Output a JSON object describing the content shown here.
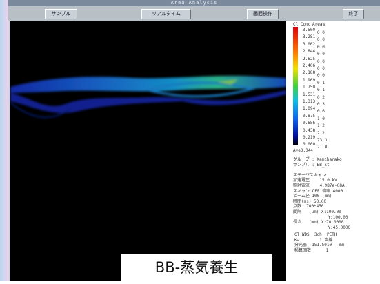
{
  "window": {
    "title": "Area Analysis",
    "buttons": [
      "サンプル",
      "リアルタイム",
      "画面操作",
      "終了"
    ]
  },
  "scale": {
    "headers": [
      "Cl Conc",
      "Area%"
    ],
    "rows": [
      [
        "3.500",
        "0.0"
      ],
      [
        "3.281",
        "0.0"
      ],
      [
        "3.062",
        "0.0"
      ],
      [
        "2.844",
        "0.0"
      ],
      [
        "2.625",
        "0.0"
      ],
      [
        "2.406",
        "0.0"
      ],
      [
        "2.188",
        "0.0"
      ],
      [
        "1.969",
        "0.1"
      ],
      [
        "1.750",
        "0.1"
      ],
      [
        "1.531",
        "0.2"
      ],
      [
        "1.313",
        "0.3"
      ],
      [
        "1.094",
        "0.6"
      ],
      [
        "0.875",
        "1.0"
      ],
      [
        "0.656",
        "1.2"
      ],
      [
        "0.438",
        "2.2"
      ],
      [
        "0.219",
        "73.3"
      ],
      [
        "0.000",
        "21.0"
      ]
    ],
    "average": "Ave0.044"
  },
  "info": {
    "lines": [
      "グループ : Kamiharako",
      "サンプル : BB_st",
      "",
      "ステージスキャン",
      "加速電圧    15.0 kV",
      "照射電流    4.987e-08A",
      "スキャン OFF 倍率 4000",
      "ビーム径 100 (um)",
      "時間(ms) 50.00",
      "点数  700*450",
      "間隔   (um) X:100.00",
      "              Y:100.00",
      "長さ   (mm) X:70.0000",
      "              Y:45.0000"
    ],
    "analysis": [
      "Cl WDS  3ch  PETH",
      "Ka        1 次線",
      "分光器  151.5010   mm",
      "積算回数      1"
    ]
  },
  "caption": "BB-蒸気養生"
}
